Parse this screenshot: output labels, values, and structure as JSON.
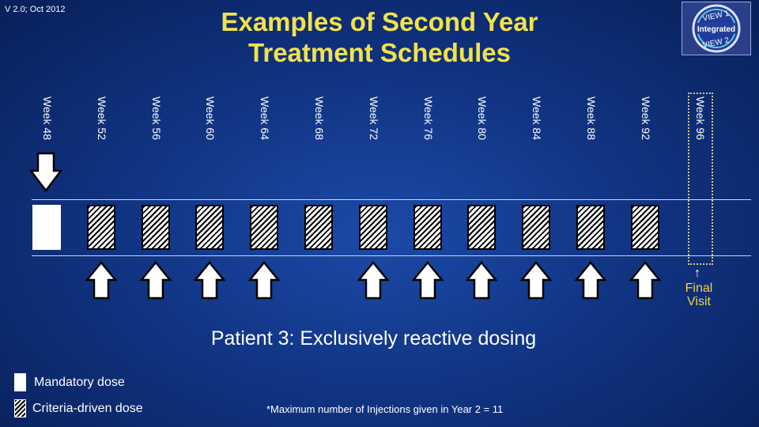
{
  "header": {
    "version": "V 2.0; Oct 2012",
    "title_line1": "Examples of Second Year",
    "title_line2": "Treatment Schedules",
    "logo": {
      "top": "VIEW 1",
      "middle": "Integrated",
      "bottom": "VIEW 2"
    }
  },
  "schedule": {
    "weeks": [
      "Week 48",
      "Week 52",
      "Week 56",
      "Week 60",
      "Week 64",
      "Week 68",
      "Week 72",
      "Week 76",
      "Week 80",
      "Week 84",
      "Week 88",
      "Week 92",
      "Week 96"
    ],
    "dose_types": [
      "mandatory",
      "criteria",
      "criteria",
      "criteria",
      "criteria",
      "criteria",
      "criteria",
      "criteria",
      "criteria",
      "criteria",
      "criteria",
      "criteria",
      null
    ],
    "injections": [
      true,
      true,
      true,
      true,
      true,
      false,
      true,
      true,
      true,
      true,
      true,
      true,
      false
    ],
    "final_visit_label_1": "Final",
    "final_visit_label_2": "Visit",
    "final_visit_arrow": "↑"
  },
  "caption": "Patient 3: Exclusively reactive dosing",
  "legend": {
    "mandatory": "Mandatory dose",
    "criteria": "Criteria-driven dose"
  },
  "footnote": "*Maximum number of Injections given in Year 2 = 11",
  "colors": {
    "title": "#f2e24a",
    "final_visit": "#f2d34a",
    "background": "#113584"
  }
}
